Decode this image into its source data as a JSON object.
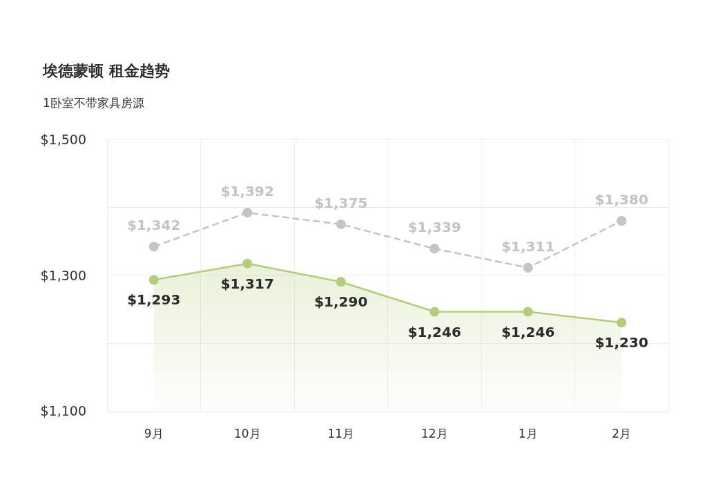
{
  "chart_data": {
    "type": "line",
    "title": "埃德蒙顿 租金趋势",
    "subtitle": "1卧室不带家具房源",
    "categories": [
      "9月",
      "10月",
      "11月",
      "12月",
      "1月",
      "2月"
    ],
    "series": [
      {
        "color": "#c4c4c4",
        "line_style": "dashed",
        "values": [
          1342,
          1392,
          1375,
          1339,
          1311,
          1380
        ],
        "value_labels": [
          "$1,342",
          "$1,392",
          "$1,375",
          "$1,339",
          "$1,311",
          "$1,380"
        ]
      },
      {
        "type": "area",
        "color": "#b5cc7a",
        "values": [
          1293,
          1317,
          1290,
          1246,
          1246,
          1230
        ],
        "value_labels": [
          "$1,293",
          "$1,317",
          "$1,290",
          "$1,246",
          "$1,246",
          "$1,230"
        ]
      }
    ],
    "ylim": [
      1100,
      1500
    ],
    "yticks": [
      {
        "value": 1100,
        "label": "$1,100"
      },
      {
        "value": 1200,
        "label": null
      },
      {
        "value": 1300,
        "label": "$1,300"
      },
      {
        "value": 1400,
        "label": null
      },
      {
        "value": 1500,
        "label": "$1,500"
      }
    ],
    "grid": true,
    "marker": "circle"
  }
}
